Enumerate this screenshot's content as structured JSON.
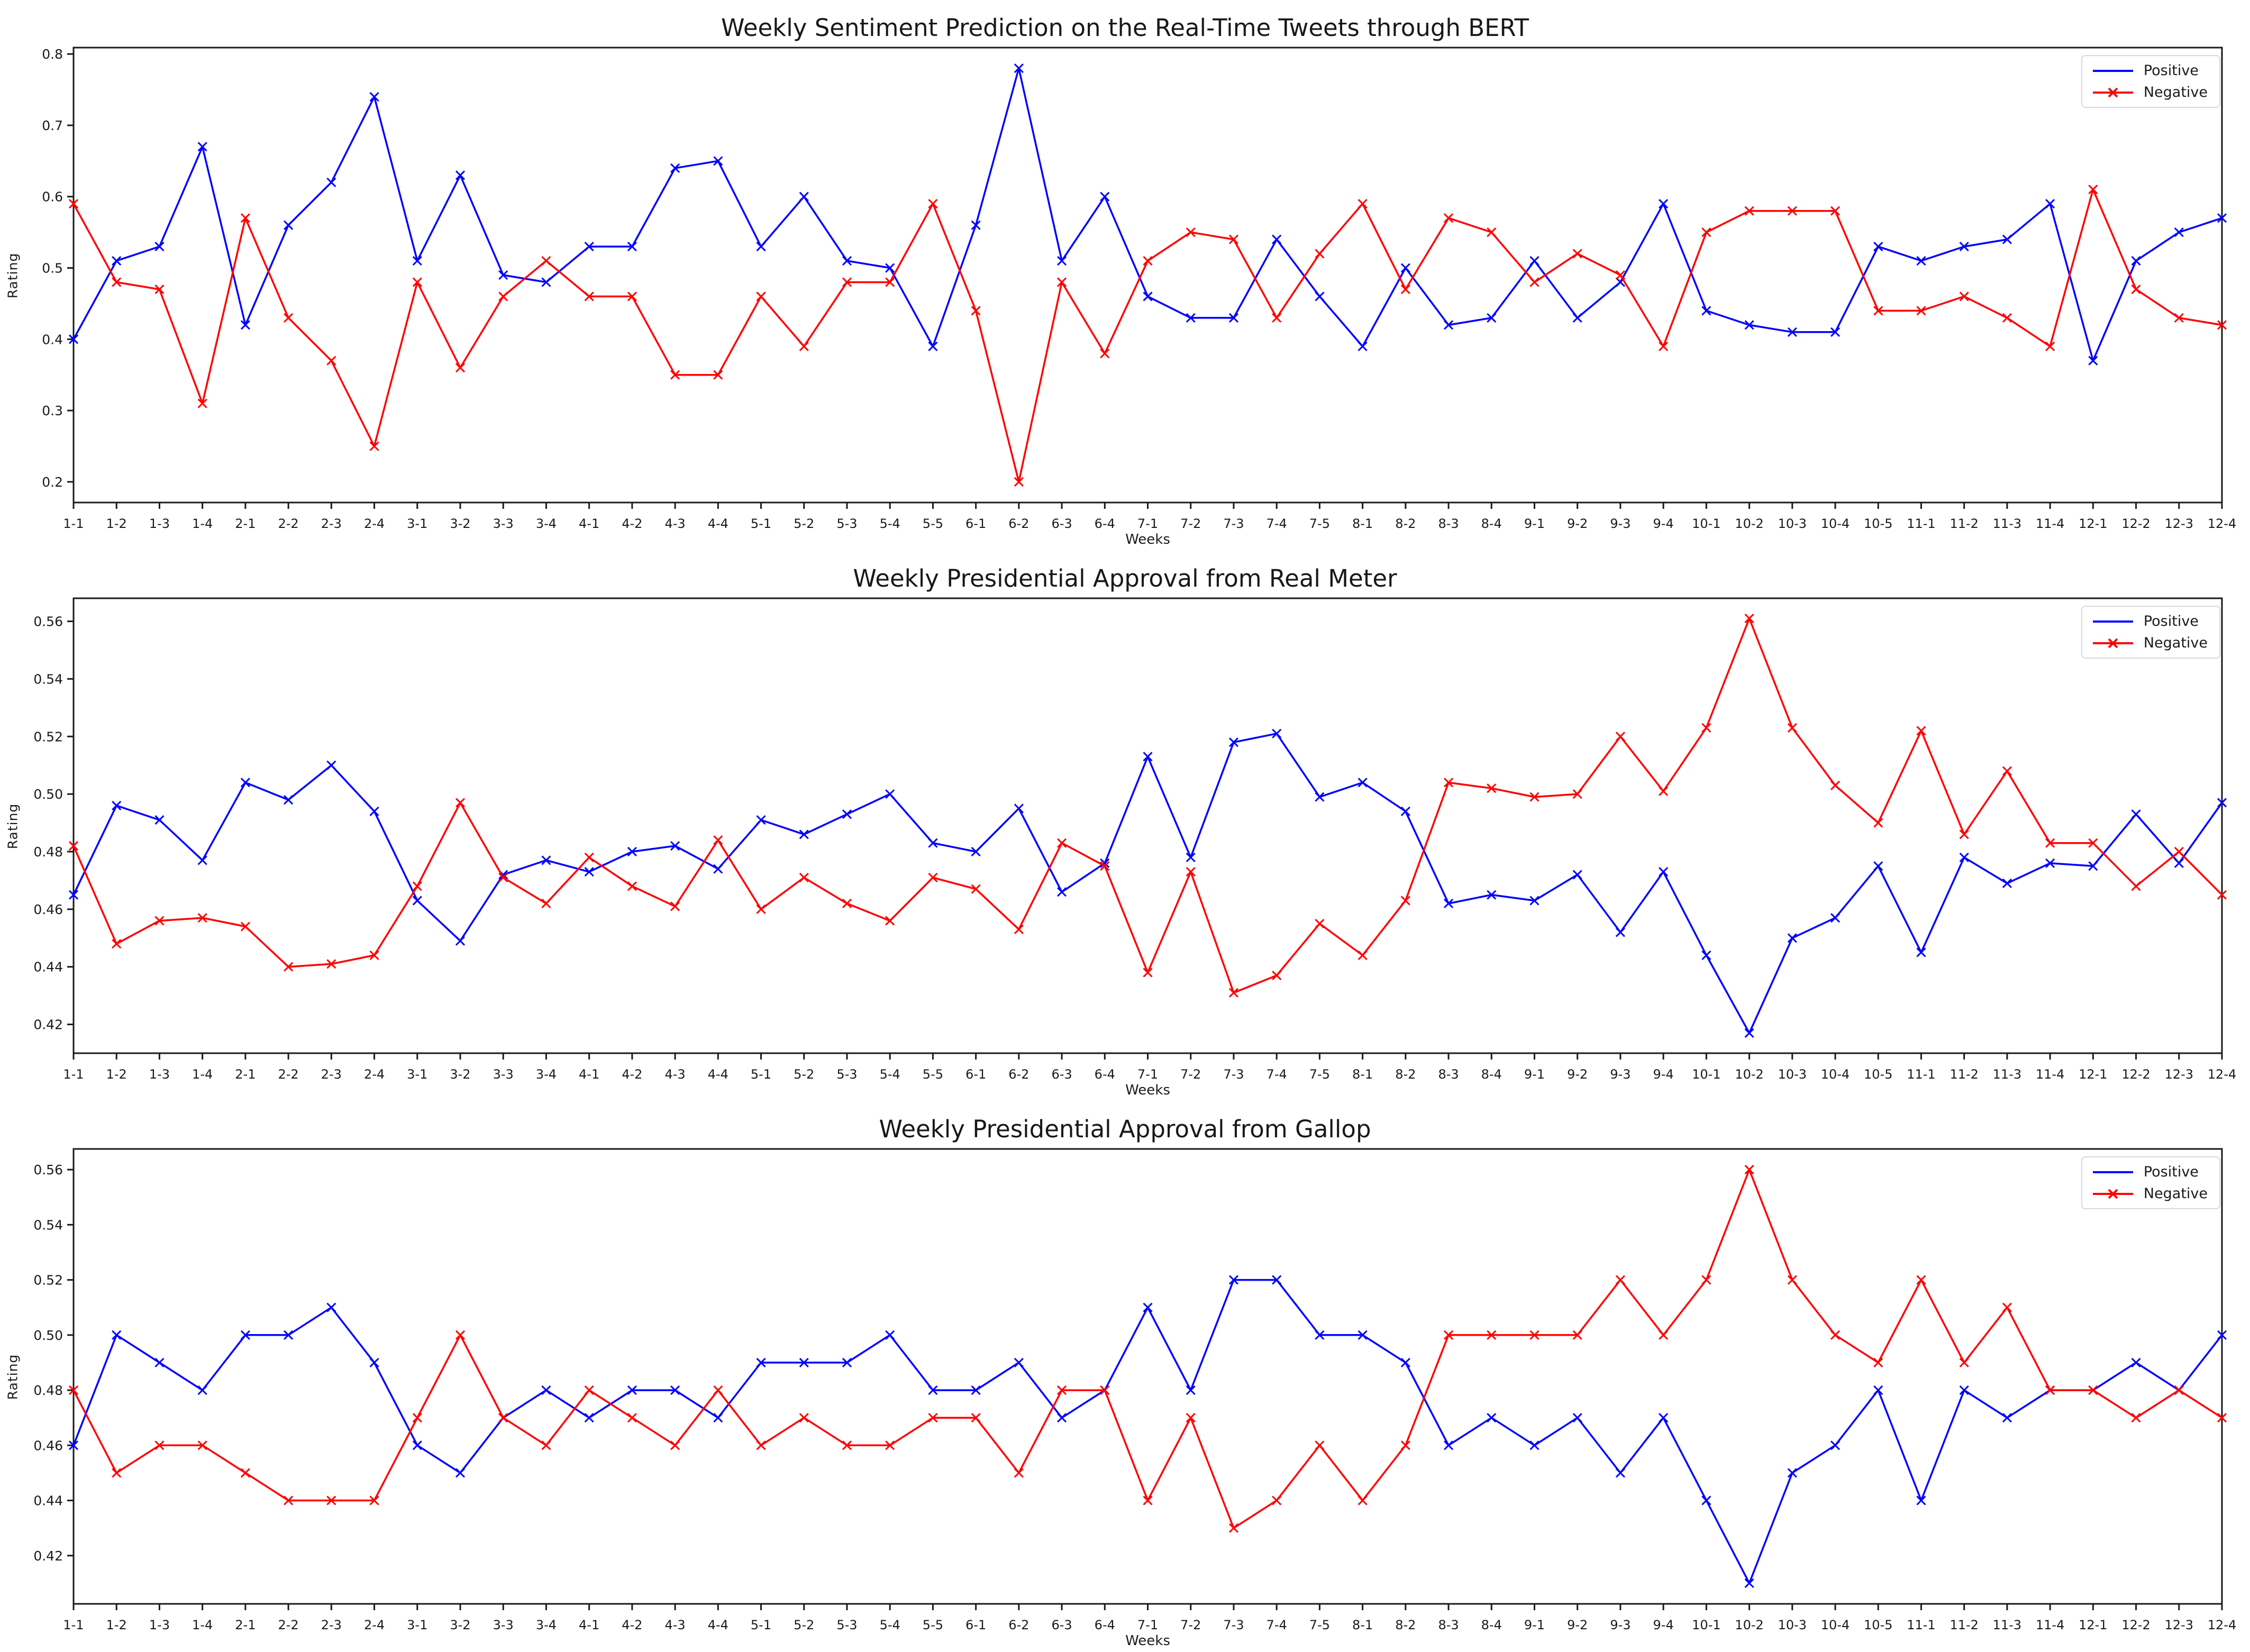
{
  "page": {
    "background": "#ffffff"
  },
  "colors": {
    "positive": "#0000ff",
    "negative": "#ff0000",
    "axis": "#1a1a1a",
    "legend_border": "#d9d9d9"
  },
  "weeks": [
    "1-1",
    "1-2",
    "1-3",
    "1-4",
    "2-1",
    "2-2",
    "2-3",
    "2-4",
    "3-1",
    "3-2",
    "3-3",
    "3-4",
    "4-1",
    "4-2",
    "4-3",
    "4-4",
    "5-1",
    "5-2",
    "5-3",
    "5-4",
    "5-5",
    "6-1",
    "6-2",
    "6-3",
    "6-4",
    "7-1",
    "7-2",
    "7-3",
    "7-4",
    "7-5",
    "8-1",
    "8-2",
    "8-3",
    "8-4",
    "9-1",
    "9-2",
    "9-3",
    "9-4",
    "10-1",
    "10-2",
    "10-3",
    "10-4",
    "10-5",
    "11-1",
    "11-2",
    "11-3",
    "11-4",
    "12-1",
    "12-2",
    "12-3",
    "12-4"
  ],
  "chart_data": [
    {
      "type": "line",
      "title": "Weekly Sentiment Prediction on the Real-Time Tweets through BERT",
      "xlabel": "Weeks",
      "ylabel": "Rating",
      "legend": [
        "Positive",
        "Negative"
      ],
      "legend_position": "upper right",
      "grid": false,
      "yticks": [
        "0.2",
        "0.3",
        "0.4",
        "0.5",
        "0.6",
        "0.7",
        "0.8"
      ],
      "ylim": [
        0.171,
        0.809
      ],
      "series": [
        {
          "name": "Positive",
          "color": "#0000ff",
          "legend_marker": false,
          "values": [
            0.4,
            0.51,
            0.53,
            0.67,
            0.42,
            0.56,
            0.62,
            0.74,
            0.51,
            0.63,
            0.49,
            0.48,
            0.53,
            0.53,
            0.64,
            0.65,
            0.53,
            0.6,
            0.51,
            0.5,
            0.39,
            0.56,
            0.78,
            0.51,
            0.6,
            0.46,
            0.43,
            0.43,
            0.54,
            0.46,
            0.39,
            0.5,
            0.42,
            0.43,
            0.51,
            0.43,
            0.48,
            0.59,
            0.44,
            0.42,
            0.41,
            0.41,
            0.53,
            0.51,
            0.53,
            0.54,
            0.59,
            0.37,
            0.51,
            0.55,
            0.57
          ]
        },
        {
          "name": "Negative",
          "color": "#ff0000",
          "legend_marker": true,
          "values": [
            0.59,
            0.48,
            0.47,
            0.31,
            0.57,
            0.43,
            0.37,
            0.25,
            0.48,
            0.36,
            0.46,
            0.51,
            0.46,
            0.46,
            0.35,
            0.35,
            0.46,
            0.39,
            0.48,
            0.48,
            0.59,
            0.44,
            0.2,
            0.48,
            0.38,
            0.51,
            0.55,
            0.54,
            0.43,
            0.52,
            0.59,
            0.47,
            0.57,
            0.55,
            0.48,
            0.52,
            0.49,
            0.39,
            0.55,
            0.58,
            0.58,
            0.58,
            0.44,
            0.44,
            0.46,
            0.43,
            0.39,
            0.61,
            0.47,
            0.43,
            0.42
          ]
        }
      ]
    },
    {
      "type": "line",
      "title": "Weekly Presidential Approval from Real Meter",
      "xlabel": "Weeks",
      "ylabel": "Rating",
      "legend": [
        "Positive",
        "Negative"
      ],
      "legend_position": "upper right",
      "grid": false,
      "yticks": [
        "0.42",
        "0.44",
        "0.46",
        "0.48",
        "0.50",
        "0.52",
        "0.54",
        "0.56"
      ],
      "ylim": [
        0.41,
        0.568
      ],
      "series": [
        {
          "name": "Positive",
          "color": "#0000ff",
          "legend_marker": false,
          "values": [
            0.465,
            0.496,
            0.491,
            0.477,
            0.504,
            0.498,
            0.51,
            0.494,
            0.463,
            0.449,
            0.472,
            0.477,
            0.473,
            0.48,
            0.482,
            0.474,
            0.491,
            0.486,
            0.493,
            0.5,
            0.483,
            0.48,
            0.495,
            0.466,
            0.476,
            0.513,
            0.478,
            0.518,
            0.521,
            0.499,
            0.504,
            0.494,
            0.462,
            0.465,
            0.463,
            0.472,
            0.452,
            0.473,
            0.444,
            0.417,
            0.45,
            0.457,
            0.475,
            0.445,
            0.478,
            0.469,
            0.476,
            0.475,
            0.493,
            0.476,
            0.497
          ]
        },
        {
          "name": "Negative",
          "color": "#ff0000",
          "legend_marker": true,
          "values": [
            0.482,
            0.448,
            0.456,
            0.457,
            0.454,
            0.44,
            0.441,
            0.444,
            0.468,
            0.497,
            0.471,
            0.462,
            0.478,
            0.468,
            0.461,
            0.484,
            0.46,
            0.471,
            0.462,
            0.456,
            0.471,
            0.467,
            0.453,
            0.483,
            0.475,
            0.438,
            0.473,
            0.431,
            0.437,
            0.455,
            0.444,
            0.463,
            0.504,
            0.502,
            0.499,
            0.5,
            0.52,
            0.501,
            0.523,
            0.561,
            0.523,
            0.503,
            0.49,
            0.522,
            0.486,
            0.508,
            0.483,
            0.483,
            0.468,
            0.48,
            0.465
          ]
        }
      ]
    },
    {
      "type": "line",
      "title": "Weekly Presidential Approval from Gallop",
      "xlabel": "Weeks",
      "ylabel": "Rating",
      "legend": [
        "Positive",
        "Negative"
      ],
      "legend_position": "upper right",
      "grid": false,
      "yticks": [
        "0.42",
        "0.44",
        "0.46",
        "0.48",
        "0.50",
        "0.52",
        "0.54",
        "0.56"
      ],
      "ylim": [
        0.4025,
        0.5675
      ],
      "series": [
        {
          "name": "Positive",
          "color": "#0000ff",
          "legend_marker": false,
          "values": [
            0.46,
            0.5,
            0.49,
            0.48,
            0.5,
            0.5,
            0.51,
            0.49,
            0.46,
            0.45,
            0.47,
            0.48,
            0.47,
            0.48,
            0.48,
            0.47,
            0.49,
            0.49,
            0.49,
            0.5,
            0.48,
            0.48,
            0.49,
            0.47,
            0.48,
            0.51,
            0.48,
            0.52,
            0.52,
            0.5,
            0.5,
            0.49,
            0.46,
            0.47,
            0.46,
            0.47,
            0.45,
            0.47,
            0.44,
            0.41,
            0.45,
            0.46,
            0.48,
            0.44,
            0.48,
            0.47,
            0.48,
            0.48,
            0.49,
            0.48,
            0.5
          ]
        },
        {
          "name": "Negative",
          "color": "#ff0000",
          "legend_marker": true,
          "values": [
            0.48,
            0.45,
            0.46,
            0.46,
            0.45,
            0.44,
            0.44,
            0.44,
            0.47,
            0.5,
            0.47,
            0.46,
            0.48,
            0.47,
            0.46,
            0.48,
            0.46,
            0.47,
            0.46,
            0.46,
            0.47,
            0.47,
            0.45,
            0.48,
            0.48,
            0.44,
            0.47,
            0.43,
            0.44,
            0.46,
            0.44,
            0.46,
            0.5,
            0.5,
            0.5,
            0.5,
            0.52,
            0.5,
            0.52,
            0.56,
            0.52,
            0.5,
            0.49,
            0.52,
            0.49,
            0.51,
            0.48,
            0.48,
            0.47,
            0.48,
            0.47
          ]
        }
      ]
    }
  ]
}
